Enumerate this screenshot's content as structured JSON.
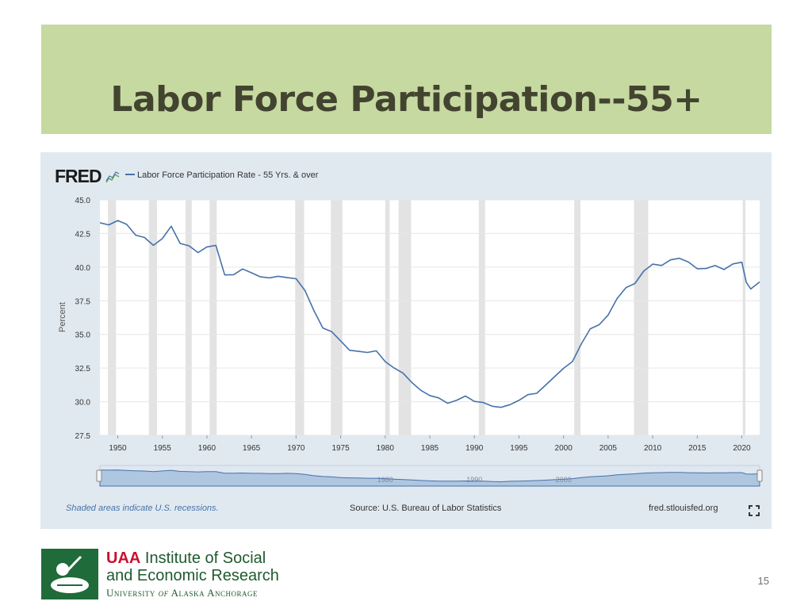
{
  "slide": {
    "title": "Labor Force Participation--55+",
    "page_number": "15",
    "colors": {
      "title_band": "#c6d9a1",
      "title_text": "#434430",
      "chart_panel": "#e1e9f0",
      "series_line": "#4672a8",
      "recession_band": "#e3e3e3"
    }
  },
  "logo": {
    "uaa": "UAA",
    "line1_rest": " Institute of Social",
    "line2": "and Economic Research",
    "line3_a": "University ",
    "line3_of": "of",
    "line3_b": " Alaska Anchorage",
    "icon": "iser-emblem-icon"
  },
  "fred": {
    "brand": "FRED",
    "brand_icon": "fred-line-graph-icon",
    "footer_left": "Shaded areas indicate U.S. recessions.",
    "footer_center": "Source: U.S. Bureau of Labor Statistics",
    "footer_right": "fred.stlouisfed.org",
    "expand_icon": "fullscreen-expand-icon",
    "navigator_labels": [
      "1980",
      "1990",
      "2000"
    ]
  },
  "chart_data": {
    "type": "line",
    "title": "",
    "xlabel": "",
    "ylabel": "Percent",
    "xlim": [
      1948,
      2022
    ],
    "ylim": [
      27.5,
      45.0
    ],
    "y_ticks": [
      "45.0",
      "42.5",
      "40.0",
      "37.5",
      "35.0",
      "32.5",
      "30.0",
      "27.5"
    ],
    "x_ticks": [
      "1950",
      "1955",
      "1960",
      "1965",
      "1970",
      "1975",
      "1980",
      "1985",
      "1990",
      "1995",
      "2000",
      "2005",
      "2010",
      "2015",
      "2020"
    ],
    "grid": true,
    "legend": "top-left",
    "series": [
      {
        "name": "Labor Force Participation Rate - 55 Yrs. & over",
        "x": [
          1948,
          1949,
          1950,
          1951,
          1952,
          1953,
          1954,
          1955,
          1956,
          1957,
          1958,
          1959,
          1960,
          1961,
          1962,
          1963,
          1964,
          1965,
          1966,
          1967,
          1968,
          1969,
          1970,
          1971,
          1972,
          1973,
          1974,
          1975,
          1976,
          1977,
          1978,
          1979,
          1980,
          1981,
          1982,
          1983,
          1984,
          1985,
          1986,
          1987,
          1988,
          1989,
          1990,
          1991,
          1992,
          1993,
          1994,
          1995,
          1996,
          1997,
          1998,
          1999,
          2000,
          2001,
          2002,
          2003,
          2004,
          2005,
          2006,
          2007,
          2008,
          2009,
          2010,
          2011,
          2012,
          2013,
          2014,
          2015,
          2016,
          2017,
          2018,
          2019,
          2020,
          2020.5,
          2021,
          2022
        ],
        "values": [
          43.3,
          43.2,
          43.4,
          43.0,
          42.5,
          42.2,
          41.5,
          42.3,
          43.1,
          41.7,
          41.4,
          41.2,
          41.5,
          41.5,
          39.6,
          39.5,
          39.8,
          39.4,
          39.4,
          39.2,
          39.2,
          39.4,
          39.2,
          38.2,
          36.6,
          35.6,
          35.2,
          34.4,
          34.0,
          33.8,
          33.6,
          33.6,
          33.1,
          32.5,
          32.0,
          31.6,
          30.9,
          30.4,
          30.1,
          30.0,
          30.1,
          30.3,
          30.2,
          30.0,
          29.6,
          29.4,
          29.9,
          30.1,
          30.4,
          30.8,
          31.3,
          31.8,
          32.3,
          33.1,
          34.3,
          35.3,
          35.9,
          36.5,
          37.6,
          38.3,
          38.9,
          39.7,
          40.1,
          40.3,
          40.6,
          40.6,
          40.2,
          40.0,
          39.9,
          40.0,
          40.0,
          40.3,
          40.3,
          38.7,
          38.5,
          38.9
        ]
      }
    ],
    "recessions": [
      [
        1948.9,
        1949.8
      ],
      [
        1953.5,
        1954.4
      ],
      [
        1957.6,
        1958.3
      ],
      [
        1960.3,
        1961.1
      ],
      [
        1969.9,
        1970.9
      ],
      [
        1973.9,
        1975.2
      ],
      [
        1980.0,
        1980.5
      ],
      [
        1981.5,
        1982.9
      ],
      [
        1990.5,
        1991.2
      ],
      [
        2001.2,
        2001.9
      ],
      [
        2007.9,
        2009.5
      ],
      [
        2020.1,
        2020.4
      ]
    ]
  }
}
